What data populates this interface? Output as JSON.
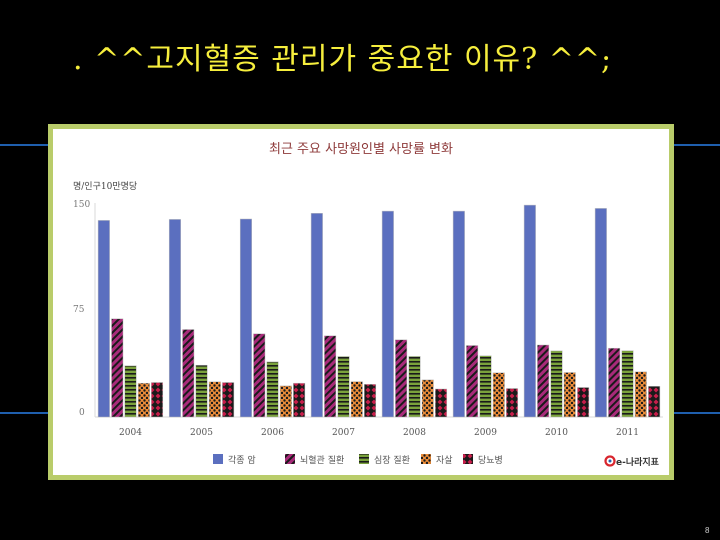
{
  "slide": {
    "title": ". ^^고지혈증 관리가 중요한 이유? ^^;",
    "page_number": "8"
  },
  "chart_data": {
    "type": "bar",
    "title": "최근 주요 사망원인별 사망률 변화",
    "ylabel": "명/인구10만명당",
    "xlabel": "",
    "ylim": [
      0,
      150
    ],
    "yticks": [
      "150",
      "75",
      "0"
    ],
    "categories": [
      "2004",
      "2005",
      "2006",
      "2007",
      "2008",
      "2009",
      "2010",
      "2011"
    ],
    "series": [
      {
        "name": "각종 암",
        "color": "#5b6fbf",
        "pattern": "solid",
        "values": [
          137.8,
          138.5,
          138.8,
          142.8,
          144.3,
          144.3,
          148.5,
          146.2
        ]
      },
      {
        "name": "뇌혈관 질환",
        "color": "#a82a7a",
        "pattern": "diagonal",
        "values": [
          68.8,
          61.3,
          58.3,
          56.9,
          54.1,
          50.1,
          50.5,
          48.2
        ]
      },
      {
        "name": "심장 질환",
        "color": "#7aa23c",
        "pattern": "horizontal",
        "values": [
          35.9,
          36.3,
          38.6,
          42.4,
          42.5,
          42.9,
          46.3,
          46.5
        ]
      },
      {
        "name": "자살",
        "color": "#ea8c39",
        "pattern": "dots",
        "values": [
          23.7,
          24.7,
          21.8,
          24.8,
          26.0,
          31.0,
          31.2,
          31.7
        ]
      },
      {
        "name": "당뇨병",
        "color": "#c81e4b",
        "pattern": "diamond",
        "values": [
          24.2,
          24.2,
          23.7,
          22.9,
          19.6,
          20.0,
          20.7,
          21.5
        ]
      }
    ],
    "legend_position": "bottom-center",
    "grid": false,
    "logo_text": "e-나라지표"
  },
  "colors": {
    "background": "#000000",
    "title_text": "#f6ee3d",
    "frame_border": "#b9cc6a",
    "band": "#1f5fae"
  }
}
